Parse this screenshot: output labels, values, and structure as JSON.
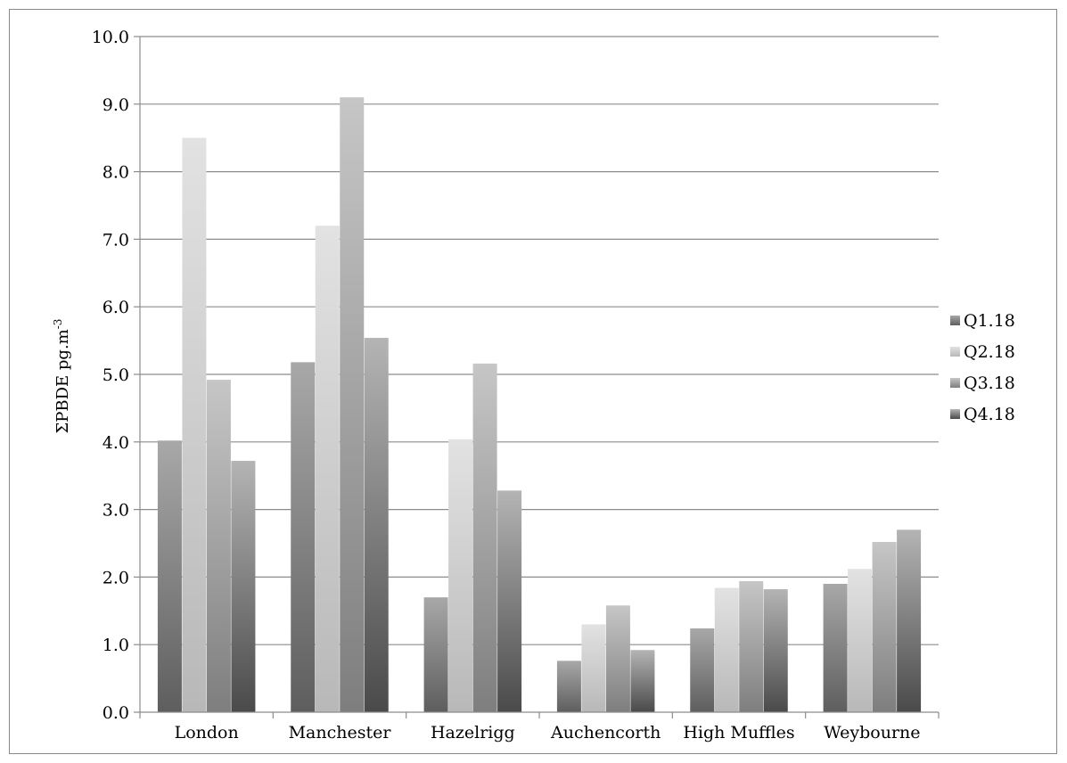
{
  "chart_data": {
    "type": "bar",
    "title": "",
    "xlabel": "",
    "ylabel": "ΣPBDE pg.m",
    "ylabel_superscript": "-3",
    "ylim": [
      0,
      10
    ],
    "y_tick_step": 1,
    "y_tick_labels": [
      "0.0",
      "1.0",
      "2.0",
      "3.0",
      "4.0",
      "5.0",
      "6.0",
      "7.0",
      "8.0",
      "9.0",
      "10.0"
    ],
    "grid": true,
    "legend_position": "right",
    "categories": [
      "London",
      "Manchester",
      "Hazelrigg",
      "Auchencorth",
      "High Muffles",
      "Weybourne"
    ],
    "series": [
      {
        "name": "Q1.18",
        "values": [
          4.02,
          5.18,
          1.7,
          0.76,
          1.24,
          1.9
        ],
        "color_top": "#a8a8a8",
        "color_bottom": "#5e5e5e"
      },
      {
        "name": "Q2.18",
        "values": [
          8.5,
          7.2,
          4.04,
          1.3,
          1.84,
          2.12
        ],
        "color_top": "#e2e2e2",
        "color_bottom": "#b8b8b8"
      },
      {
        "name": "Q3.18",
        "values": [
          4.92,
          9.1,
          5.16,
          1.58,
          1.94,
          2.52
        ],
        "color_top": "#c6c6c6",
        "color_bottom": "#7e7e7e"
      },
      {
        "name": "Q4.18",
        "values": [
          3.72,
          5.54,
          3.28,
          0.92,
          1.82,
          2.7
        ],
        "color_top": "#b4b4b4",
        "color_bottom": "#4a4a4a"
      }
    ]
  }
}
